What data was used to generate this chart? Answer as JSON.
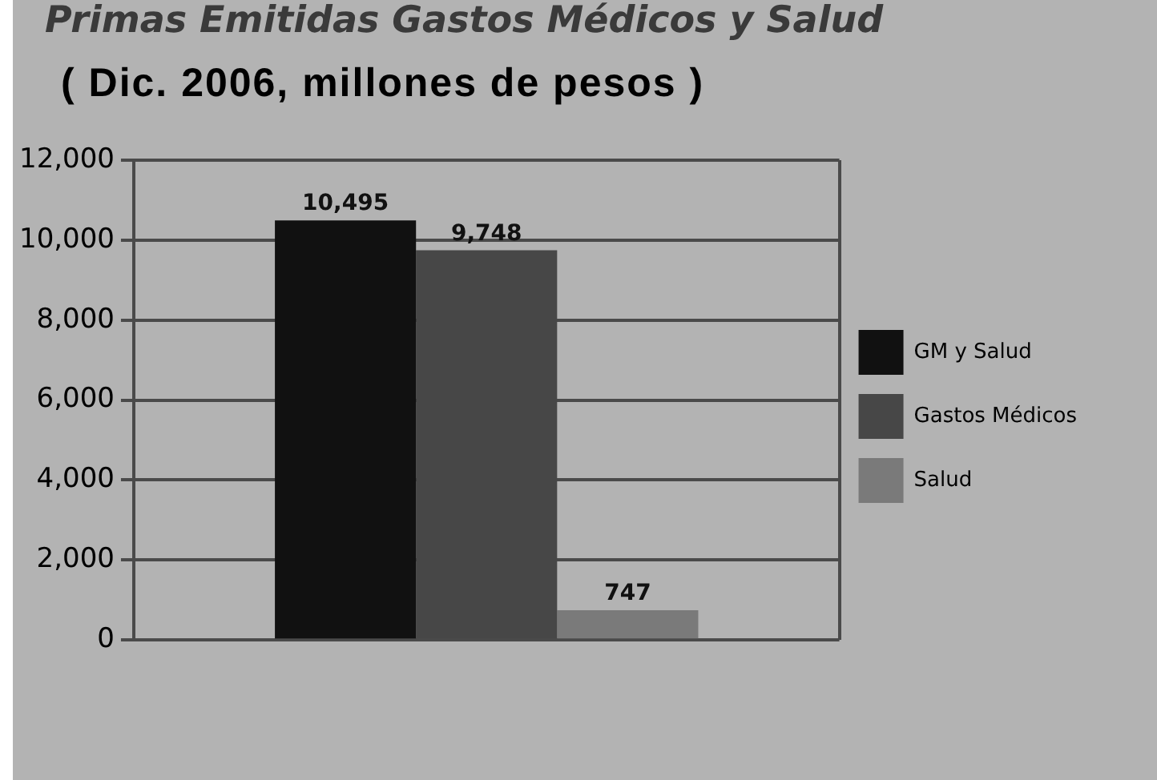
{
  "chart_data": {
    "type": "bar",
    "title": "Primas Emitidas Gastos Médicos y Salud",
    "subtitle": "( Dic. 2006, millones de pesos )",
    "categories": [
      null
    ],
    "series": [
      {
        "name": "GM y Salud",
        "color": "#111111",
        "values": [
          10495
        ],
        "value_labels": [
          "10,495"
        ]
      },
      {
        "name": "Gastos Médicos",
        "color": "#474747",
        "values": [
          9748
        ],
        "value_labels": [
          "9,748"
        ]
      },
      {
        "name": "Salud",
        "color": "#7a7a7a",
        "values": [
          747
        ],
        "value_labels": [
          "747"
        ]
      }
    ],
    "ylim": [
      0,
      12000
    ],
    "yticks": [
      {
        "value": 0,
        "label": "0"
      },
      {
        "value": 2000,
        "label": "2,000"
      },
      {
        "value": 4000,
        "label": "4,000"
      },
      {
        "value": 6000,
        "label": "6,000"
      },
      {
        "value": 8000,
        "label": "8,000"
      },
      {
        "value": 10000,
        "label": "10,000"
      },
      {
        "value": 12000,
        "label": "12,000"
      }
    ],
    "grid": true,
    "legend": "right"
  }
}
